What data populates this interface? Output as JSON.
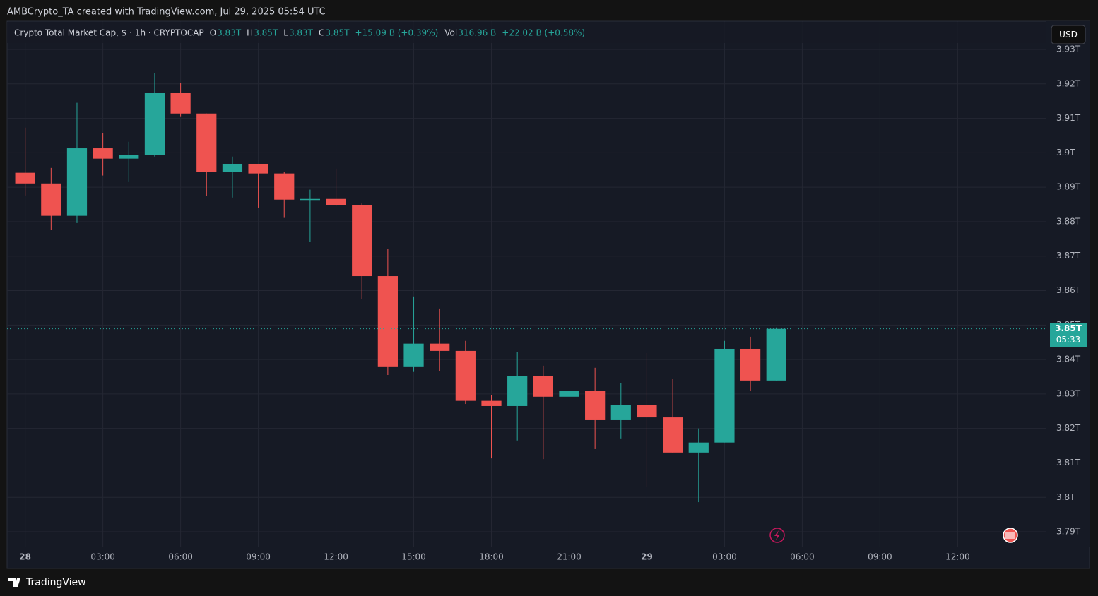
{
  "caption": "AMBCrypto_TA created with TradingView.com, Jul 29, 2025 05:54 UTC",
  "brand": "TradingView",
  "currency_button": "USD",
  "legend": {
    "symbol": "Crypto Total Market Cap, $ · 1h · CRYPTOCAP",
    "items": [
      {
        "key": "O",
        "value": "3.83T"
      },
      {
        "key": "H",
        "value": "3.85T"
      },
      {
        "key": "L",
        "value": "3.83T"
      },
      {
        "key": "C",
        "value": "3.85T"
      }
    ],
    "change": "+15.09 B (+0.39%)",
    "volume": {
      "key": "Vol",
      "value": "316.96 B"
    },
    "volume_change": "+22.02 B (+0.58%)"
  },
  "price_label": "3.85T",
  "countdown": "05:33",
  "chart_data": {
    "type": "candlestick",
    "x": [
      0,
      1,
      2,
      3,
      4,
      5,
      6,
      7,
      8,
      9,
      10,
      11,
      12,
      13,
      14,
      15,
      16,
      17,
      18,
      19,
      20,
      21,
      22,
      23,
      24,
      25,
      26,
      27,
      28,
      29
    ],
    "xlim": [
      -0.7,
      39.4
    ],
    "xticks": [
      {
        "value": 0,
        "label": "28"
      },
      {
        "value": 3,
        "label": "03:00"
      },
      {
        "value": 6,
        "label": "06:00"
      },
      {
        "value": 9,
        "label": "09:00"
      },
      {
        "value": 12,
        "label": "12:00"
      },
      {
        "value": 15,
        "label": "15:00"
      },
      {
        "value": 18,
        "label": "18:00"
      },
      {
        "value": 21,
        "label": "21:00"
      },
      {
        "value": 24,
        "label": "29"
      },
      {
        "value": 27,
        "label": "03:00"
      },
      {
        "value": 30,
        "label": "06:00"
      },
      {
        "value": 33,
        "label": "09:00"
      },
      {
        "value": 36,
        "label": "12:00"
      }
    ],
    "ylim": [
      3.7855,
      3.9382
    ],
    "yticks": [
      {
        "value": 3.79,
        "label": "3.79T"
      },
      {
        "value": 3.8,
        "label": "3.8T"
      },
      {
        "value": 3.81,
        "label": "3.81T"
      },
      {
        "value": 3.82,
        "label": "3.82T"
      },
      {
        "value": 3.83,
        "label": "3.83T"
      },
      {
        "value": 3.84,
        "label": "3.84T"
      },
      {
        "value": 3.85,
        "label": "3.85T"
      },
      {
        "value": 3.86,
        "label": "3.86T"
      },
      {
        "value": 3.87,
        "label": "3.87T"
      },
      {
        "value": 3.88,
        "label": "3.88T"
      },
      {
        "value": 3.89,
        "label": "3.89T"
      },
      {
        "value": 3.9,
        "label": "3.9T"
      },
      {
        "value": 3.91,
        "label": "3.91T"
      },
      {
        "value": 3.92,
        "label": "3.92T"
      },
      {
        "value": 3.93,
        "label": "3.93T"
      }
    ],
    "grid": true,
    "up_color": "#26a69a",
    "down_color": "#ef5350",
    "series": [
      {
        "name": "Crypto Total Market Cap",
        "open": [
          3.8942,
          3.8911,
          3.8817,
          3.9013,
          3.8983,
          3.8993,
          3.9175,
          3.9114,
          3.8944,
          3.8968,
          3.894,
          3.8864,
          3.8866,
          3.8849,
          3.8642,
          3.8378,
          3.8446,
          3.8425,
          3.828,
          3.8265,
          3.8353,
          3.8292,
          3.8308,
          3.8224,
          3.8269,
          3.8232,
          3.813,
          3.8159,
          3.8431,
          3.8339
        ],
        "high": [
          3.9073,
          3.8956,
          3.9145,
          3.9057,
          3.9032,
          3.9231,
          3.9202,
          3.9114,
          3.8989,
          3.8968,
          3.8944,
          3.8893,
          3.8954,
          3.8853,
          3.8722,
          3.8583,
          3.8548,
          3.8454,
          3.8296,
          3.8421,
          3.8382,
          3.8409,
          3.8376,
          3.8331,
          3.8419,
          3.8343,
          3.82,
          3.8454,
          3.8466,
          3.8493
        ],
        "low": [
          3.8876,
          3.8776,
          3.8796,
          3.8934,
          3.8915,
          3.8989,
          3.9106,
          3.8874,
          3.887,
          3.8841,
          3.8811,
          3.8741,
          3.8845,
          3.8575,
          3.8355,
          3.8364,
          3.8366,
          3.8271,
          3.8113,
          3.8165,
          3.8111,
          3.8222,
          3.814,
          3.8171,
          3.8029,
          3.813,
          3.7986,
          3.8159,
          3.831,
          3.8339
        ],
        "close": [
          3.8911,
          3.8817,
          3.9013,
          3.8983,
          3.8993,
          3.9175,
          3.9114,
          3.8944,
          3.8968,
          3.894,
          3.8864,
          3.8866,
          3.8849,
          3.8642,
          3.8378,
          3.8446,
          3.8425,
          3.828,
          3.8265,
          3.8353,
          3.8292,
          3.8308,
          3.8224,
          3.8269,
          3.8232,
          3.813,
          3.8159,
          3.8431,
          3.8339,
          3.8489
        ]
      }
    ]
  }
}
